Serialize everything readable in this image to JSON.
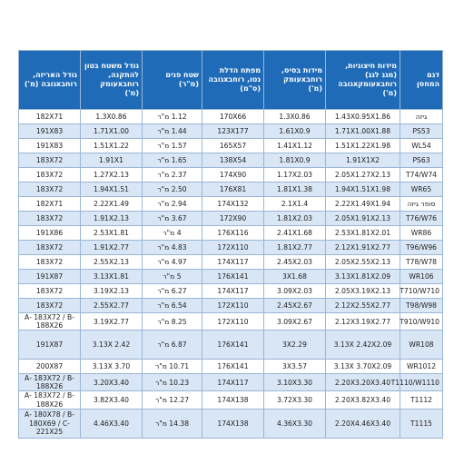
{
  "table": {
    "header": [
      "דגם המחסן",
      "מידות חיצוניות, (מגג לגג) רוחבxעומקxגובה (מ')",
      "מידות בסיס, רוחבxעומק (מ')",
      "מפתח הדלת נטו, רוחבxגובה (ס\"מ)",
      "שטח פנים (מ\"ר)",
      "גודל משטח בטון להתקנה, רוחבxעומק (מ')",
      "גודל האריזה, רוחבxגובה (מ')"
    ],
    "rows": [
      [
        "גיזה",
        "1.43X0.95X1.86",
        "1.3X0.86",
        "170X66",
        "1.12 מ\"ר",
        "1.3X0.86",
        "182X71"
      ],
      [
        "PS53",
        "1.71X1.00X1.88",
        "1.61X0.9",
        "123X177",
        "1.44 מ\"ר",
        "1.71X1.00",
        "191X83"
      ],
      [
        "WL54",
        "1.51X1.22X1.98",
        "1.41X1.12",
        "165X57",
        "1.57 מ\"ר",
        "1.51X1.22",
        "191X83"
      ],
      [
        "PS63",
        "1.91X1X2",
        "1.81X0.9",
        "138X54",
        "1.65 מ\"ר",
        "1.91X1",
        "183X72"
      ],
      [
        "T74/W74",
        "2.05X1.27X2.13",
        "1.17X2.03",
        "174X90",
        "2.37 מ\"ר",
        "1.27X2.13",
        "183X72"
      ],
      [
        "WR65",
        "1.94X1.51X1.98",
        "1.81X1.38",
        "176X81",
        "2.50 מ\"ר",
        "1.94X1.51",
        "183X72"
      ],
      [
        "סופר גיזה",
        "2.22X1.49X1.94",
        "2.1X1.4",
        "174X132",
        "2.94 מ\"ר",
        "2.22X1.49",
        "182X71"
      ],
      [
        "T76/W76",
        "2.05X1.91X2.13",
        "1.81X2.03",
        "172X90",
        "3.67 מ\"ר",
        "1.91X2.13",
        "183X72"
      ],
      [
        "WR86",
        "2.53X1.81X2.01",
        "2.41X1.68",
        "176X116",
        "4 מ\"ר",
        "2.53X1.81",
        "191X86"
      ],
      [
        "T96/W96",
        "2.12X1.91X2.77",
        "1.81X2.77",
        "172X110",
        "4.83 מ\"ר",
        "1.91X2.77",
        "183X72"
      ],
      [
        "T78/W78",
        "2.05X2.55X2.13",
        "2.45X2.03",
        "174X117",
        "4.97 מ\"ר",
        "2.55X2.13",
        "183X72"
      ],
      [
        "WR106",
        "3.13X1.81X2.09",
        "3X1.68",
        "176X141",
        "5 מ\"ר",
        "3.13X1.81",
        "191X87"
      ],
      [
        "T710/W710",
        "2.05X3.19X2.13",
        "3.09X2.03",
        "174X117",
        "6.27 מ\"ר",
        "3.19X2.13",
        "183X72"
      ],
      [
        "T98/W98",
        "2.12X2.55X2.77",
        "2.45X2.67",
        "172X110",
        "6.54 מ\"ר",
        "2.55X2.77",
        "183X72"
      ],
      [
        "T910/W910",
        "2.12X3.19X2.77",
        "3.09X2.67",
        "172X110",
        "8.25 מ\"ר",
        "3.19X2.77",
        "A- 183X72 / B-188X26"
      ],
      [
        "WR108",
        "3.13X 2.42X2.09",
        "3X2.29",
        "176X141",
        "6.87 מ\"ר",
        "3.13X 2.42",
        "191X87"
      ],
      [
        "WR1012",
        "3.13X 3.70X2.09",
        "3X3.57",
        "176X141",
        "10.71 מ\"ר",
        "3.13X 3.70",
        "200X87"
      ],
      [
        "T1110/W1110",
        "2.20X3.20X3.40",
        "3.10X3.30",
        "174X117",
        "10.23 מ\"ר",
        "3.20X3.40",
        "A- 183X72 / B-188X26"
      ],
      [
        "T1112",
        "2.20X3.82X3.40",
        "3.72X3.30",
        "174X138",
        "12.27 מ\"ר",
        "3.82X3.40",
        "A- 183X72 / B- 188X26"
      ],
      [
        "T1115",
        "2.20X4.46X3.40",
        "4.36X3.30",
        "174X138",
        "14.38 מ\"ר",
        "4.46X3.40",
        "A- 180X78 / B-180X69 / C- 221X25"
      ]
    ]
  }
}
